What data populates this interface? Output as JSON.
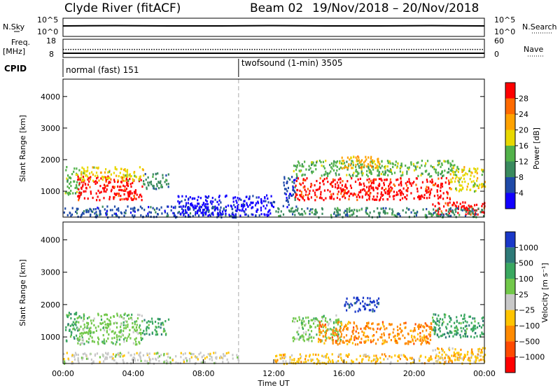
{
  "header": {
    "station": "Clyde River (fitACF)",
    "beam": "Beam 02",
    "date_range": "19/Nov/2018 – 20/Nov/2018"
  },
  "chart_data": [
    {
      "type": "line",
      "panel": "noise",
      "left_label": "N.Sky",
      "left_ticks": [
        "10^5",
        "10^0"
      ],
      "right_label": "N.Search",
      "right_ticks": [
        "10^5",
        "10^0"
      ],
      "series": [
        {
          "x": [
            0,
            3,
            6,
            9,
            12,
            15,
            18,
            21,
            24
          ],
          "values": [
            3.0,
            3.1,
            3.0,
            3.0,
            3.1,
            3.0,
            3.0,
            3.1,
            3.0
          ]
        }
      ]
    },
    {
      "type": "line",
      "panel": "frequency",
      "left_label": "Freq.",
      "left_units": "[MHz]",
      "left_ticks": [
        "18",
        "8"
      ],
      "right_label": "Nave",
      "right_ticks": [
        "60",
        "0"
      ],
      "series": [
        {
          "x": [
            0,
            24
          ],
          "values": [
            10.0,
            10.0
          ]
        },
        {
          "x": [
            0,
            24
          ],
          "values": [
            28,
            28
          ]
        }
      ]
    },
    {
      "type": "table",
      "panel": "cpid",
      "label": "CPID",
      "segments": [
        {
          "text": "normal (fast) 151",
          "start": 0,
          "end": 10
        },
        {
          "text": "twofsound (1-min) 3505",
          "start": 10,
          "end": 24
        }
      ]
    },
    {
      "type": "heatmap",
      "panel": "power",
      "ylabel": "Slant Range [km]",
      "xlim": [
        0,
        24
      ],
      "ylim": [
        180,
        4550
      ],
      "yticks": [
        1000,
        2000,
        3000,
        4000
      ],
      "colorbar": {
        "label": "Power [dB]",
        "ticks": [
          "28",
          "24",
          "20",
          "16",
          "12",
          "8",
          "4"
        ],
        "colors": [
          "#ff0000",
          "#ff6a00",
          "#ffa200",
          "#e8d800",
          "#52b24a",
          "#3a8a5e",
          "#1f4aa8",
          "#1200ff"
        ]
      },
      "regions": [
        {
          "x0": 0.1,
          "x1": 1.0,
          "y0": 900,
          "y1": 1800,
          "level": 4
        },
        {
          "x0": 0.8,
          "x1": 4.5,
          "y0": 750,
          "y1": 1500,
          "level": 0
        },
        {
          "x0": 1.0,
          "x1": 4.6,
          "y0": 1350,
          "y1": 1800,
          "level": 3
        },
        {
          "x0": 4.5,
          "x1": 6.0,
          "y0": 1100,
          "y1": 1600,
          "level": 5
        },
        {
          "x0": 0.0,
          "x1": 10.0,
          "y0": 200,
          "y1": 550,
          "level": 6
        },
        {
          "x0": 6.5,
          "x1": 12.0,
          "y0": 250,
          "y1": 900,
          "level": 7
        },
        {
          "x0": 12.5,
          "x1": 13.3,
          "y0": 500,
          "y1": 1500,
          "level": 6
        },
        {
          "x0": 13.1,
          "x1": 22.5,
          "y0": 1500,
          "y1": 2000,
          "level": 4
        },
        {
          "x0": 13.2,
          "x1": 22.0,
          "y0": 750,
          "y1": 1450,
          "level": 0
        },
        {
          "x0": 15.8,
          "x1": 18.0,
          "y0": 1750,
          "y1": 2150,
          "level": 2
        },
        {
          "x0": 21.0,
          "x1": 24.0,
          "y0": 280,
          "y1": 700,
          "level": 0
        },
        {
          "x0": 22.0,
          "x1": 24.0,
          "y0": 1000,
          "y1": 1800,
          "level": 3
        },
        {
          "x0": 12.0,
          "x1": 24.0,
          "y0": 200,
          "y1": 500,
          "level": 5
        }
      ]
    },
    {
      "type": "heatmap",
      "panel": "velocity",
      "xlabel": "Time UT",
      "ylabel": "Slant Range [km]",
      "xlim": [
        0,
        24
      ],
      "ylim": [
        180,
        4550
      ],
      "xticks": [
        "00:00",
        "04:00",
        "08:00",
        "12:00",
        "16:00",
        "20:00",
        "00:00"
      ],
      "yticks": [
        1000,
        2000,
        3000,
        4000
      ],
      "colorbar": {
        "label": "Velocity [m s⁻¹]",
        "ticks": [
          "1000",
          "500",
          "100",
          "25",
          "−25",
          "−100",
          "−500",
          "−1000"
        ],
        "colors": [
          "#1a38c8",
          "#2e7a78",
          "#3aa860",
          "#72c84a",
          "#c8c8c8",
          "#ffc400",
          "#ff8a00",
          "#ff4a00",
          "#ff0000"
        ]
      },
      "regions": [
        {
          "x0": 0.1,
          "x1": 1.0,
          "y0": 900,
          "y1": 1800,
          "level": 2
        },
        {
          "x0": 0.8,
          "x1": 4.5,
          "y0": 800,
          "y1": 1750,
          "level": 3
        },
        {
          "x0": 4.5,
          "x1": 6.0,
          "y0": 1100,
          "y1": 1600,
          "level": 2
        },
        {
          "x0": 0.0,
          "x1": 10.0,
          "y0": 200,
          "y1": 550,
          "level": 4
        },
        {
          "x0": 13.0,
          "x1": 15.8,
          "y0": 900,
          "y1": 1700,
          "level": 3
        },
        {
          "x0": 14.5,
          "x1": 21.0,
          "y0": 800,
          "y1": 1500,
          "level": 6
        },
        {
          "x0": 16.0,
          "x1": 18.0,
          "y0": 1800,
          "y1": 2250,
          "level": 0
        },
        {
          "x0": 21.0,
          "x1": 24.0,
          "y0": 1000,
          "y1": 1750,
          "level": 2
        },
        {
          "x0": 21.0,
          "x1": 24.0,
          "y0": 300,
          "y1": 700,
          "level": 5
        },
        {
          "x0": 12.0,
          "x1": 24.0,
          "y0": 200,
          "y1": 500,
          "level": 5
        }
      ]
    }
  ]
}
